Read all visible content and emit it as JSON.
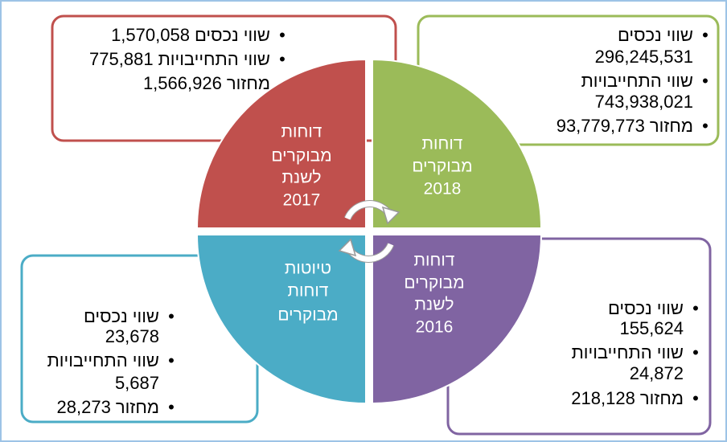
{
  "quadrants": [
    {
      "title": [
        "דוחות",
        "מבוקרים",
        "לשנת",
        "2017"
      ],
      "items": [
        {
          "label": "שווי נכסים",
          "value": "1,570,058"
        },
        {
          "label": "שווי התחייבויות",
          "value": "775,881"
        },
        {
          "label": "מחזור",
          "value": "1,566,926"
        }
      ]
    },
    {
      "title": [
        "דוחות",
        "מבוקרים",
        "2018"
      ],
      "items": [
        {
          "label": "שווי נכסים",
          "value": "296,245,531"
        },
        {
          "label": "שווי התחייבויות",
          "value": "743,938,021"
        },
        {
          "label": "מחזור",
          "value": "93,779,773"
        }
      ]
    },
    {
      "title": [
        "טיוטות",
        "דוחות",
        "מבוקרים"
      ],
      "items": [
        {
          "label": "שווי נכסים",
          "value": "23,678"
        },
        {
          "label": "שווי התחייבויות",
          "value": "5,687"
        },
        {
          "label": "מחזור",
          "value": "28,273"
        }
      ]
    },
    {
      "title": [
        "דוחות",
        "מבוקרים",
        "לשנת",
        "2016"
      ],
      "items": [
        {
          "label": "שווי נכסים",
          "value": "155,624"
        },
        {
          "label": "שווי התחייבויות",
          "value": "24,872"
        },
        {
          "label": "מחזור",
          "value": "218,128"
        }
      ]
    }
  ]
}
